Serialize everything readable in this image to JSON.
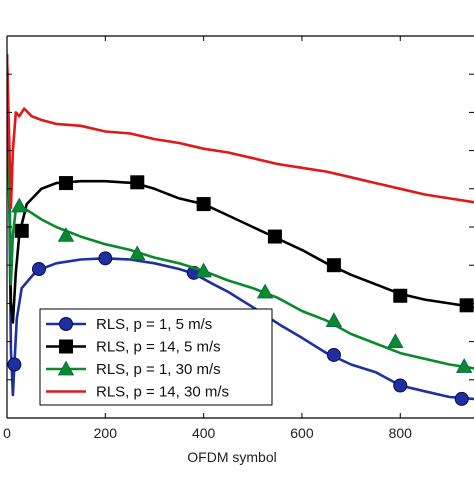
{
  "chart_data": {
    "type": "line",
    "title": "",
    "xlabel": "OFDM symbol",
    "ylabel": "",
    "xlim": [
      0,
      950
    ],
    "ylim": [
      0,
      1.0
    ],
    "x_ticks": [
      0,
      200,
      400,
      600,
      800
    ],
    "x_tick_labels": [
      "0",
      "200",
      "400",
      "600",
      "800"
    ],
    "y_ticks": [
      0.1,
      0.2,
      0.3,
      0.4,
      0.5,
      0.6,
      0.7,
      0.8,
      0.9
    ],
    "grid": false,
    "legend_position": "bottom-left",
    "series": [
      {
        "name": "RLS, p = 1, 5 m/s",
        "color": "#1f2f9f",
        "marker": "circle",
        "x": [
          0,
          5,
          8,
          12,
          15,
          20,
          30,
          60,
          100,
          150,
          200,
          250,
          300,
          350,
          380,
          420,
          450,
          500,
          530,
          560,
          600,
          650,
          700,
          750,
          800,
          850,
          900,
          950
        ],
        "y": [
          0.95,
          0.52,
          0.18,
          0.06,
          0.14,
          0.26,
          0.34,
          0.385,
          0.405,
          0.415,
          0.418,
          0.415,
          0.405,
          0.39,
          0.378,
          0.35,
          0.33,
          0.29,
          0.265,
          0.24,
          0.21,
          0.17,
          0.14,
          0.12,
          0.085,
          0.07,
          0.055,
          0.05
        ],
        "marker_x": [
          15,
          65,
          200,
          380,
          525,
          665,
          800,
          925
        ],
        "marker_y": [
          0.14,
          0.39,
          0.418,
          0.38,
          0.265,
          0.165,
          0.085,
          0.05
        ]
      },
      {
        "name": "RLS, p = 14, 5 m/s",
        "color": "#000000",
        "marker": "square",
        "x": [
          0,
          5,
          8,
          12,
          18,
          25,
          40,
          70,
          100,
          150,
          200,
          260,
          300,
          350,
          400,
          450,
          500,
          550,
          600,
          650,
          700,
          750,
          800,
          850,
          900,
          950
        ],
        "y": [
          0.95,
          0.6,
          0.3,
          0.25,
          0.38,
          0.48,
          0.56,
          0.6,
          0.615,
          0.62,
          0.62,
          0.615,
          0.6,
          0.575,
          0.56,
          0.53,
          0.5,
          0.47,
          0.44,
          0.405,
          0.375,
          0.35,
          0.325,
          0.31,
          0.3,
          0.29
        ],
        "marker_x": [
          30,
          120,
          265,
          400,
          545,
          665,
          800,
          935
        ],
        "marker_y": [
          0.49,
          0.615,
          0.617,
          0.56,
          0.475,
          0.4,
          0.32,
          0.295
        ]
      },
      {
        "name": "RLS, p = 1, 30 m/s",
        "color": "#0b8a2b",
        "marker": "triangle",
        "x": [
          0,
          5,
          8,
          12,
          18,
          25,
          40,
          70,
          100,
          150,
          200,
          250,
          300,
          350,
          400,
          450,
          500,
          550,
          600,
          650,
          700,
          750,
          800,
          850,
          900,
          950
        ],
        "y": [
          0.95,
          0.55,
          0.35,
          0.48,
          0.545,
          0.555,
          0.545,
          0.52,
          0.5,
          0.475,
          0.455,
          0.44,
          0.42,
          0.405,
          0.385,
          0.36,
          0.34,
          0.315,
          0.28,
          0.255,
          0.22,
          0.195,
          0.17,
          0.155,
          0.14,
          0.13
        ],
        "marker_x": [
          25,
          120,
          265,
          400,
          525,
          665,
          790,
          930
        ],
        "marker_y": [
          0.555,
          0.478,
          0.43,
          0.385,
          0.33,
          0.255,
          0.2,
          0.135
        ]
      },
      {
        "name": "RLS, p = 14, 30 m/s",
        "color": "#e01818",
        "marker": "none",
        "x": [
          0,
          5,
          8,
          12,
          18,
          25,
          35,
          50,
          70,
          100,
          150,
          200,
          250,
          300,
          350,
          400,
          450,
          500,
          550,
          600,
          650,
          700,
          750,
          800,
          850,
          900,
          950
        ],
        "y": [
          0.95,
          0.7,
          0.55,
          0.7,
          0.8,
          0.79,
          0.81,
          0.79,
          0.78,
          0.77,
          0.765,
          0.75,
          0.745,
          0.73,
          0.72,
          0.705,
          0.695,
          0.68,
          0.665,
          0.655,
          0.645,
          0.63,
          0.615,
          0.6,
          0.585,
          0.575,
          0.565
        ]
      }
    ]
  }
}
